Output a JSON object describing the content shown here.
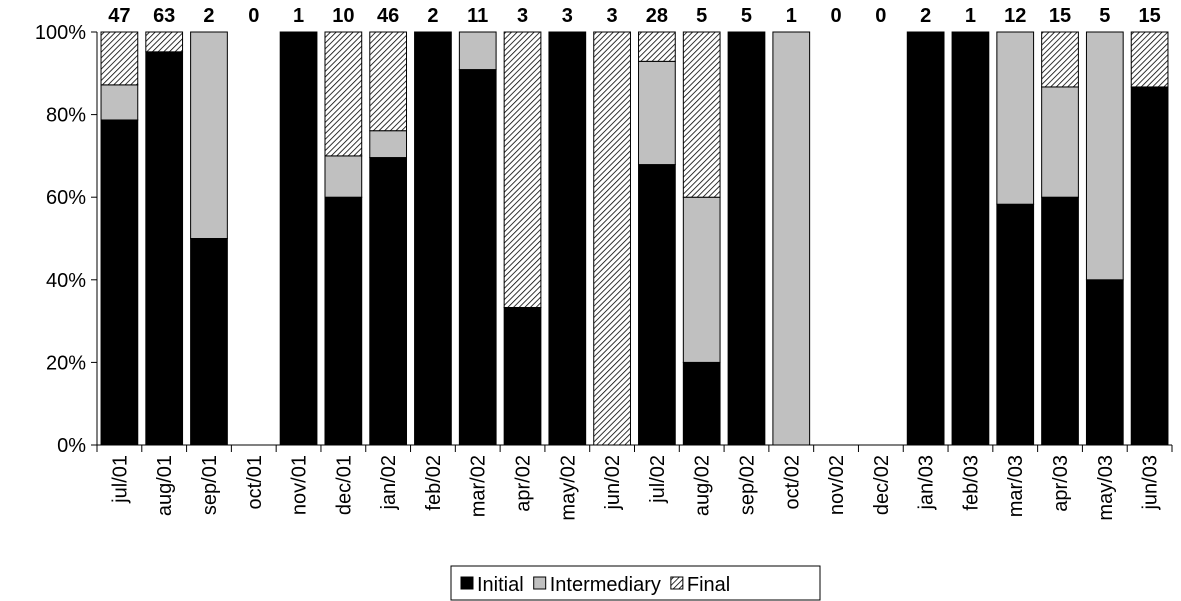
{
  "chart_data": {
    "type": "stacked_bar_100",
    "categories": [
      "jul/01",
      "aug/01",
      "sep/01",
      "oct/01",
      "nov/01",
      "dec/01",
      "jan/02",
      "feb/02",
      "mar/02",
      "apr/02",
      "may/02",
      "jun/02",
      "jul/02",
      "aug/02",
      "sep/02",
      "oct/02",
      "nov/02",
      "dec/02",
      "jan/03",
      "feb/03",
      "mar/03",
      "apr/03",
      "may/03",
      "jun/03"
    ],
    "totals": [
      47,
      63,
      2,
      0,
      1,
      10,
      46,
      2,
      11,
      3,
      3,
      3,
      28,
      5,
      5,
      1,
      0,
      0,
      2,
      1,
      12,
      15,
      5,
      15
    ],
    "series": [
      {
        "name": "Initial",
        "color": "#000000",
        "values": [
          78.7,
          95.2,
          50,
          0,
          100,
          60,
          69.6,
          100,
          90.9,
          33.3,
          100,
          0,
          67.9,
          20,
          100,
          0,
          0,
          0,
          100,
          100,
          58.3,
          60,
          40,
          86.7
        ]
      },
      {
        "name": "Intermediary",
        "color": "#c0c0c0",
        "values": [
          8.5,
          0,
          50,
          0,
          0,
          10,
          6.5,
          0,
          9.1,
          0,
          0,
          0,
          25,
          40,
          0,
          100,
          0,
          0,
          0,
          0,
          41.7,
          26.7,
          60,
          0
        ]
      },
      {
        "name": "Final",
        "color": "#ffffff",
        "pattern": "hatch",
        "values": [
          12.8,
          4.8,
          0,
          0,
          0,
          30,
          23.9,
          0,
          0,
          66.7,
          0,
          100,
          7.1,
          40,
          0,
          0,
          0,
          0,
          0,
          0,
          0,
          13.3,
          0,
          13.3
        ]
      }
    ],
    "ylim": [
      0,
      100
    ],
    "yticks": [
      {
        "value": 0,
        "label": "0%"
      },
      {
        "value": 20,
        "label": "20%"
      },
      {
        "value": 40,
        "label": "40%"
      },
      {
        "value": 60,
        "label": "60%"
      },
      {
        "value": 80,
        "label": "80%"
      },
      {
        "value": 100,
        "label": "100%"
      }
    ],
    "legend": "bottom"
  }
}
